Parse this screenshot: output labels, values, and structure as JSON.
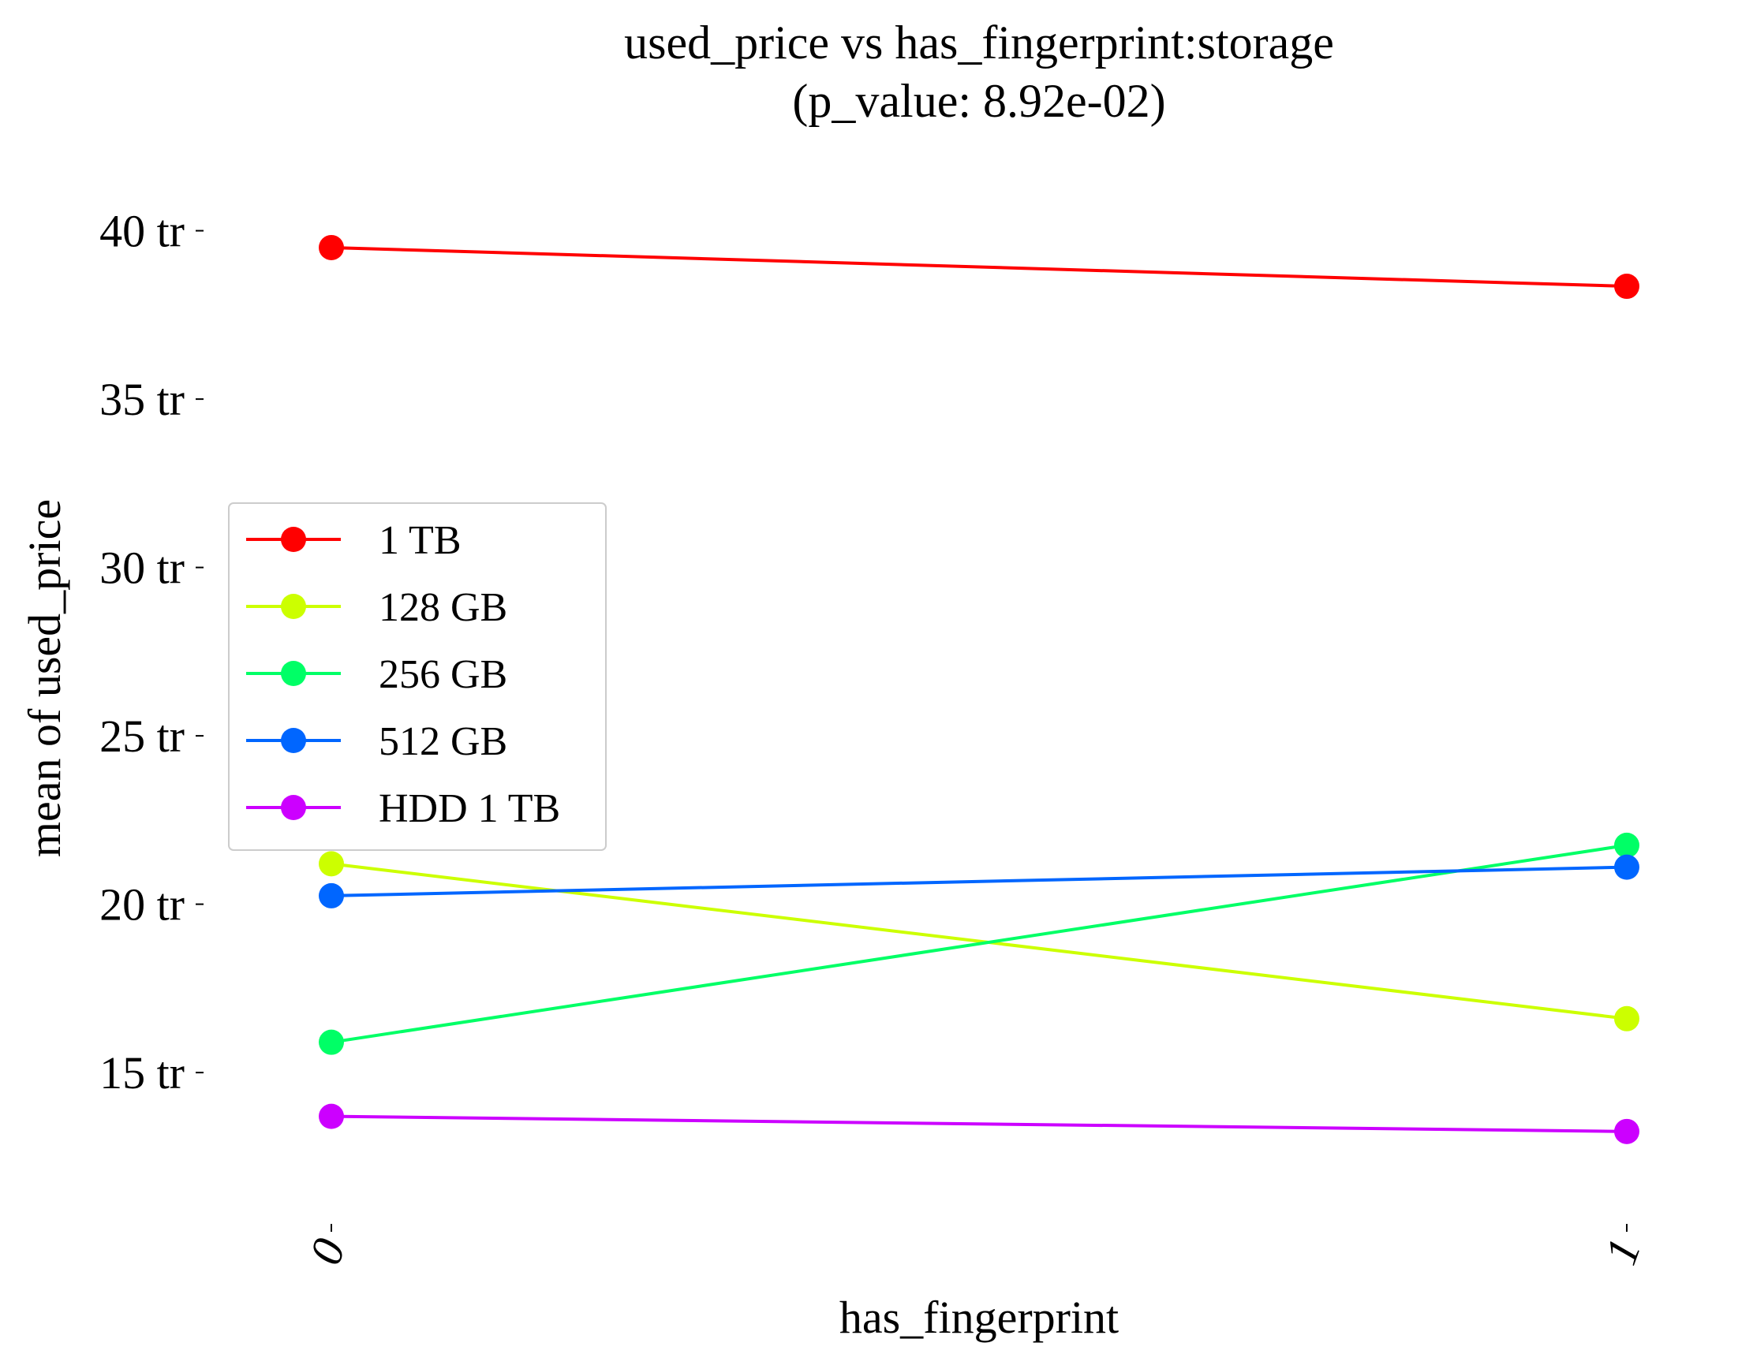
{
  "chart_data": {
    "type": "line",
    "title": "used_price vs has_fingerprint:storage",
    "subtitle": "(p_value: 8.92e-02)",
    "xlabel": "has_fingerprint",
    "ylabel": "mean of used_price",
    "x_categories": [
      "0",
      "1"
    ],
    "y_ticks": [
      {
        "value": 15,
        "label": "15 tr"
      },
      {
        "value": 20,
        "label": "20 tr"
      },
      {
        "value": 25,
        "label": "25 tr"
      },
      {
        "value": 30,
        "label": "30 tr"
      },
      {
        "value": 35,
        "label": "35 tr"
      },
      {
        "value": 40,
        "label": "40 tr"
      }
    ],
    "ylim": [
      10.6,
      41.7
    ],
    "grid": false,
    "legend_position": "center-left",
    "series": [
      {
        "name": "1 TB",
        "color": "#ff0000",
        "values": [
          39.5,
          38.35
        ]
      },
      {
        "name": "128 GB",
        "color": "#ccff00",
        "values": [
          21.2,
          16.6
        ]
      },
      {
        "name": "256 GB",
        "color": "#00ff66",
        "values": [
          15.9,
          21.75
        ]
      },
      {
        "name": "512 GB",
        "color": "#0066ff",
        "values": [
          20.25,
          21.1
        ]
      },
      {
        "name": "HDD 1 TB",
        "color": "#cc00ff",
        "values": [
          13.7,
          13.25
        ]
      }
    ]
  }
}
